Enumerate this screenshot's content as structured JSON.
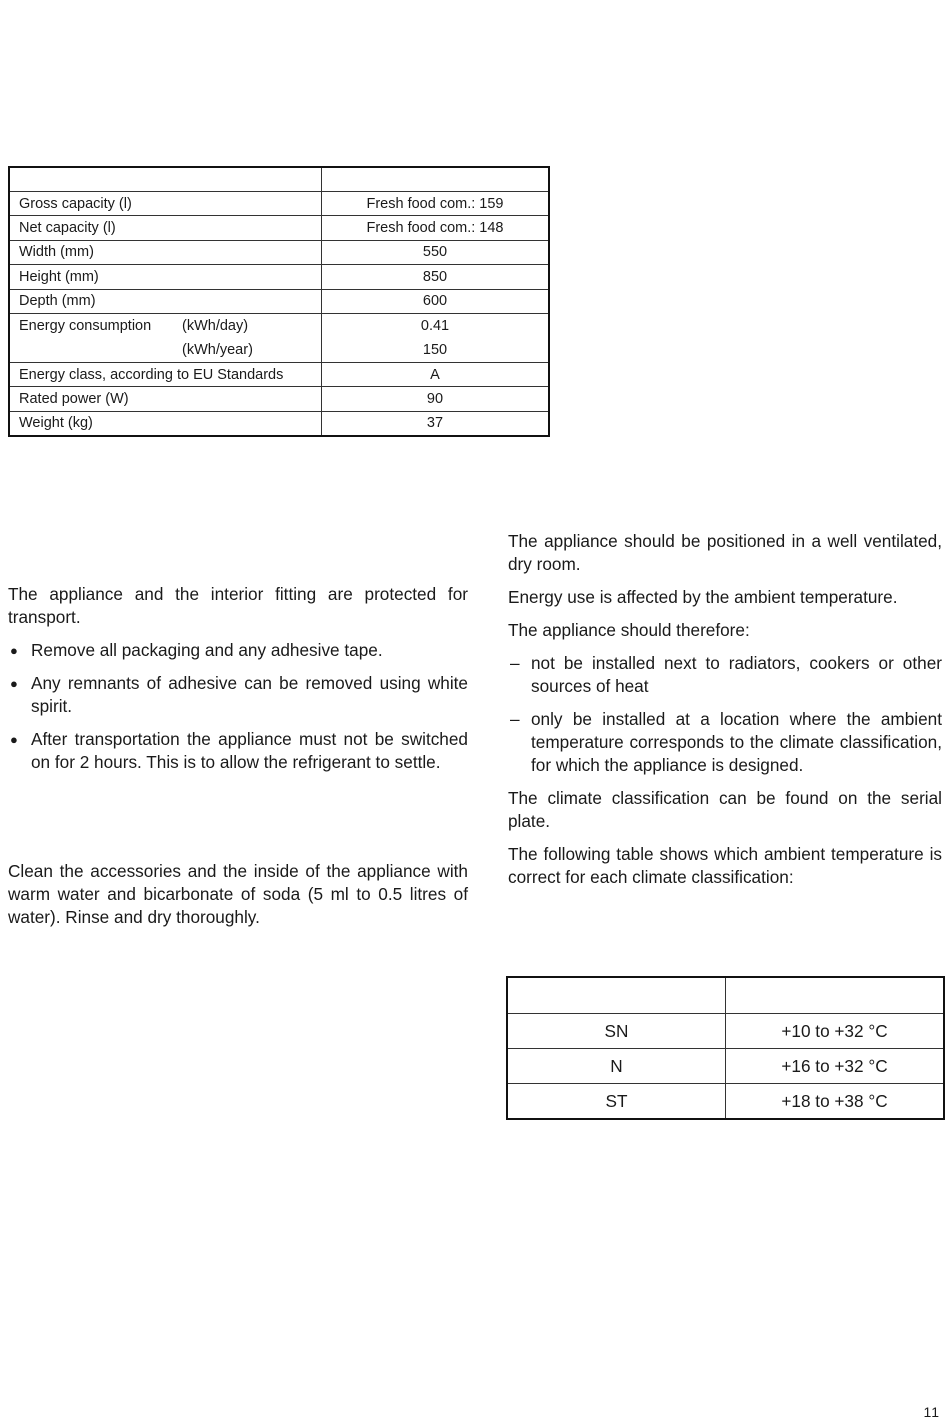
{
  "spec_table": {
    "header": [
      "",
      ""
    ],
    "rows": [
      {
        "label": "Gross capacity (l)",
        "value": "Fresh food com.: 159"
      },
      {
        "label": "Net capacity (l)",
        "value": "Fresh food com.: 148"
      },
      {
        "label": "Width (mm)",
        "value": "550"
      },
      {
        "label": "Height (mm)",
        "value": "850"
      },
      {
        "label": "Depth (mm)",
        "value": "600"
      },
      {
        "label": "Energy consumption",
        "unit1": "(kWh/day)",
        "value1": "0.41",
        "unit2": "(kWh/year)",
        "value2": "150"
      },
      {
        "label": "Energy class, according to EU Standards",
        "value": "A"
      },
      {
        "label": "Rated power (W)",
        "value": "90"
      },
      {
        "label": "Weight (kg)",
        "value": "37"
      }
    ]
  },
  "left": {
    "intro": "The appliance and the interior fitting are protected for transport.",
    "bullets": [
      "Remove all packaging and any adhesive tape.",
      "Any remnants of adhesive can be removed using white spirit.",
      "After transportation the appliance must not be switched on for 2 hours. This is to allow the refrigerant to settle."
    ],
    "bullet_marker": "●",
    "cleaning": "Clean the accessories and the inside of the appliance with warm water and bicarbonate of soda (5 ml to 0.5 litres of water). Rinse and dry thoroughly."
  },
  "right": {
    "p1": "The appliance should be positioned in a well ventilated, dry room.",
    "p2": "Energy use is affected by the ambient temperature.",
    "p3": "The appliance should therefore:",
    "dashes": [
      "not be installed next to radiators, cookers or other sources of heat",
      "only be installed at a location where the ambient temperature corresponds to the climate classification, for which the appliance is designed."
    ],
    "dash_marker": "–",
    "p4": "The climate classification can be found on the serial plate.",
    "p5": "The following table shows which ambient temperature is correct for each climate classification:"
  },
  "climate_table": {
    "header": [
      "",
      ""
    ],
    "rows": [
      {
        "class": "SN",
        "range": "+10 to +32 °C"
      },
      {
        "class": "N",
        "range": "+16 to +32 °C"
      },
      {
        "class": "ST",
        "range": "+18 to +38 °C"
      }
    ]
  },
  "page_number": "11"
}
